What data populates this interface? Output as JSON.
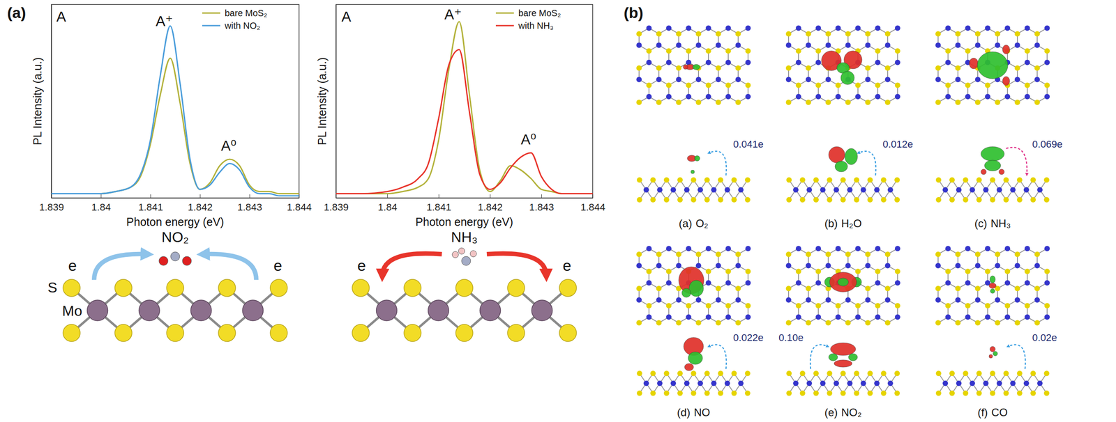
{
  "panel_labels": [
    "(a)",
    "(b)"
  ],
  "chart_data": [
    {
      "type": "line",
      "x_label": "Photon energy (eV)",
      "y_label": "PL Intensity (a.u.)",
      "x": [
        1.839,
        1.8395,
        1.84,
        1.8403,
        1.8406,
        1.8408,
        1.841,
        1.8412,
        1.8414,
        1.8416,
        1.8418,
        1.842,
        1.8422,
        1.8424,
        1.8426,
        1.8428,
        1.843,
        1.8432,
        1.8434,
        1.8436,
        1.844
      ],
      "xlim": [
        1.839,
        1.844
      ],
      "xticks": [
        1.839,
        1.84,
        1.841,
        1.842,
        1.843,
        1.844
      ],
      "ylim": [
        0,
        0.9
      ],
      "tick_labels": "x",
      "legend": "upper right",
      "series": [
        {
          "name": "bare MoS₂",
          "color": "#b3b23a",
          "values": [
            0.02,
            0.02,
            0.02,
            0.03,
            0.05,
            0.1,
            0.25,
            0.48,
            0.65,
            0.44,
            0.16,
            0.04,
            0.07,
            0.15,
            0.18,
            0.15,
            0.06,
            0.03,
            0.03,
            0.02,
            0.02
          ]
        },
        {
          "name": "with NO₂",
          "color": "#4a9ddb",
          "values": [
            0.02,
            0.02,
            0.02,
            0.03,
            0.05,
            0.11,
            0.27,
            0.57,
            0.8,
            0.53,
            0.18,
            0.04,
            0.06,
            0.12,
            0.16,
            0.13,
            0.05,
            0.02,
            0.02,
            0.01,
            0.01
          ]
        }
      ],
      "annotations": [
        {
          "text": "A",
          "x": 1.8392,
          "y": 0.82
        },
        {
          "text": "A⁺",
          "x": 1.84128,
          "y": 0.8
        },
        {
          "text": "A⁰",
          "x": 1.84258,
          "y": 0.22
        }
      ]
    },
    {
      "type": "line",
      "x_label": "Photon energy (eV)",
      "y_label": "PL Intensity (a.u.)",
      "x": [
        1.839,
        1.8395,
        1.84,
        1.8403,
        1.8406,
        1.8408,
        1.841,
        1.8412,
        1.8414,
        1.8416,
        1.8418,
        1.842,
        1.8422,
        1.8424,
        1.8426,
        1.8428,
        1.843,
        1.8432,
        1.8434,
        1.8436,
        1.844
      ],
      "xlim": [
        1.839,
        1.844
      ],
      "xticks": [
        1.839,
        1.84,
        1.841,
        1.842,
        1.843,
        1.844
      ],
      "ylim": [
        0,
        0.9
      ],
      "tick_labels": "x",
      "legend": "upper right",
      "series": [
        {
          "name": "bare MoS₂",
          "color": "#b3b23a",
          "values": [
            0.02,
            0.02,
            0.02,
            0.03,
            0.05,
            0.09,
            0.27,
            0.6,
            0.82,
            0.48,
            0.13,
            0.03,
            0.08,
            0.15,
            0.13,
            0.09,
            0.04,
            0.03,
            0.02,
            0.02,
            0.02
          ]
        },
        {
          "name": "with NH₃",
          "color": "#e8332a",
          "values": [
            0.02,
            0.02,
            0.03,
            0.05,
            0.09,
            0.16,
            0.37,
            0.62,
            0.69,
            0.4,
            0.11,
            0.04,
            0.07,
            0.14,
            0.19,
            0.21,
            0.1,
            0.04,
            0.02,
            0.02,
            0.02
          ]
        }
      ],
      "annotations": [
        {
          "text": "A",
          "x": 1.8392,
          "y": 0.82
        },
        {
          "text": "A⁺",
          "x": 1.84128,
          "y": 0.83
        },
        {
          "text": "A⁰",
          "x": 1.84275,
          "y": 0.25
        }
      ]
    }
  ],
  "schematics": [
    {
      "molecule": "NO₂",
      "electron": "e",
      "atoms": [
        "S",
        "Mo"
      ]
    },
    {
      "molecule": "NH₃",
      "electron": "e"
    }
  ],
  "structures": [
    {
      "panel": "(a)",
      "molecule": "O₂",
      "charge": "0.041e",
      "color": "#3b9fe2"
    },
    {
      "panel": "(b)",
      "molecule": "H₂O",
      "charge": "0.012e",
      "color": "#3b9fe2"
    },
    {
      "panel": "(c)",
      "molecule": "NH₃",
      "charge": "0.069e",
      "color": "#e0338a"
    },
    {
      "panel": "(d)",
      "molecule": "NO",
      "charge": "0.022e",
      "color": "#3b9fe2"
    },
    {
      "panel": "(e)",
      "molecule": "NO₂",
      "charge": "0.10e",
      "color": "#3b9fe2"
    },
    {
      "panel": "(f)",
      "molecule": "CO",
      "charge": "0.02e",
      "color": "#3b9fe2"
    }
  ]
}
